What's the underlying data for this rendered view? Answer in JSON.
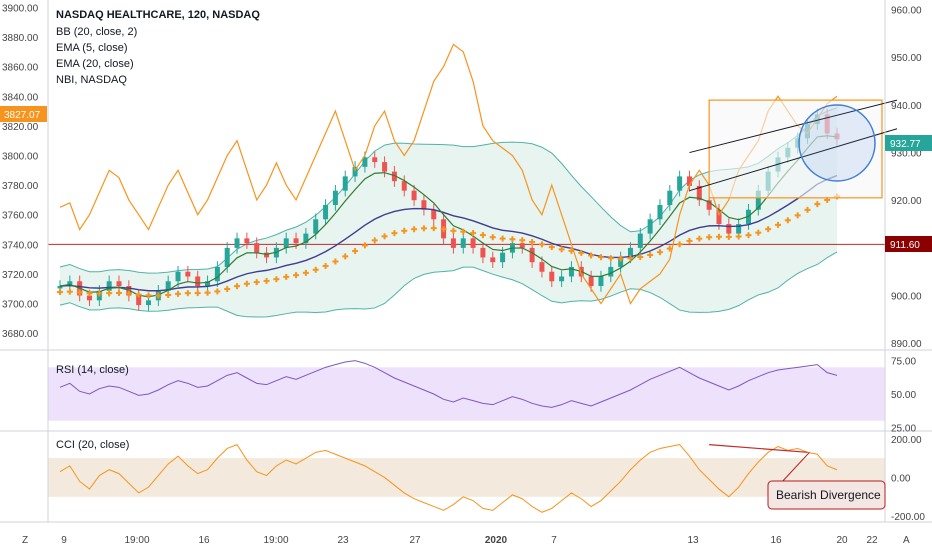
{
  "main": {
    "legend": [
      "NASDAQ HEALTHCARE, 120, NASDAQ",
      "BB (20, close, 2)",
      "EMA (5, close)",
      "EMA (20, close)",
      "NBI, NASDAQ"
    ],
    "left_ticks": [
      "3900.00",
      "3880.00",
      "3860.00",
      "3840.00",
      "3820.00",
      "3800.00",
      "3780.00",
      "3760.00",
      "3740.00",
      "3720.00",
      "3700.00",
      "3680.00"
    ],
    "right_ticks": [
      "960.00",
      "950.00",
      "940.00",
      "930.00",
      "920.00",
      "910.00",
      "900.00",
      "890.00"
    ],
    "left_price_tag": "3827.07",
    "right_price_tag_green": "932.77",
    "right_price_tag_red": "911.60"
  },
  "rsi": {
    "legend": "RSI (14, close)",
    "ticks": [
      "75.00",
      "50.00",
      "25.00"
    ]
  },
  "cci": {
    "legend": "CCI (20, close)",
    "ticks": [
      "200.00",
      "0.00",
      "-200.00"
    ],
    "annotation": "Bearish Divergence"
  },
  "time_axis": {
    "labels": [
      "9",
      "19:00",
      "16",
      "19:00",
      "23",
      "27",
      "2020",
      "7",
      "13",
      "16",
      "20",
      "22"
    ]
  },
  "corner": {
    "left": "Z",
    "right": "A"
  },
  "colors": {
    "up": "#26a69a",
    "down": "#ef5350",
    "orange": "#f7941d",
    "ema5": "#2e7d32",
    "ema20": "#3f3d8f",
    "bb": "#4fb3a6",
    "bbfill": "#e4f3ee",
    "hline": "#c62828",
    "rsiband": "#ede1fb",
    "cciband": "#f3e9dc",
    "circle": "#3f7fd6"
  },
  "chart_data": [
    {
      "type": "candlestick",
      "title": "NASDAQ HEALTHCARE, 120, NASDAQ",
      "left_axis_range": [
        3670,
        3905
      ],
      "right_axis_range": [
        889,
        962
      ],
      "x_labels": [
        "9",
        "19:00",
        "16",
        "19:00",
        "23",
        "27",
        "2020",
        "7",
        "13",
        "16",
        "20",
        "22"
      ],
      "horizontal_line": 3740,
      "series": [
        {
          "name": "NBI, NASDAQ",
          "axis": "left",
          "values": [
            3765,
            3768,
            3750,
            3760,
            3775,
            3790,
            3785,
            3770,
            3760,
            3750,
            3765,
            3780,
            3790,
            3775,
            3760,
            3770,
            3785,
            3800,
            3810,
            3790,
            3770,
            3780,
            3795,
            3780,
            3770,
            3785,
            3800,
            3815,
            3830,
            3810,
            3790,
            3800,
            3820,
            3830,
            3810,
            3800,
            3810,
            3830,
            3850,
            3860,
            3875,
            3870,
            3850,
            3820,
            3810,
            3805,
            3800,
            3790,
            3770,
            3760,
            3780,
            3760,
            3740,
            3720,
            3710,
            3700,
            3710,
            3720,
            3700,
            3710,
            3715,
            3720,
            3730,
            3760,
            3780,
            3790,
            3780,
            3760,
            3770,
            3790,
            3800,
            3810,
            3830,
            3840,
            3830,
            3820,
            3815,
            3825,
            3835,
            3840
          ]
        },
        {
          "name": "NASDAQ HEALTHCARE (close)",
          "axis": "right",
          "values": [
            902,
            903,
            900,
            899,
            901,
            903,
            902,
            900,
            898,
            899,
            901,
            903,
            905,
            904,
            902,
            903,
            906,
            910,
            912,
            911,
            909,
            908,
            910,
            912,
            911,
            913,
            916,
            919,
            922,
            925,
            927,
            929,
            928,
            926,
            924,
            922,
            920,
            918,
            916,
            912,
            910,
            912,
            910,
            908,
            907,
            909,
            911,
            910,
            907,
            905,
            903,
            904,
            906,
            904,
            902,
            904,
            906,
            908,
            910,
            913,
            916,
            919,
            922,
            925,
            923,
            920,
            918,
            915,
            913,
            915,
            918,
            922,
            926,
            929,
            931,
            933,
            936,
            938,
            934,
            932.77
          ]
        },
        {
          "name": "EMA (5, close)",
          "axis": "right"
        },
        {
          "name": "EMA (20, close)",
          "axis": "right"
        },
        {
          "name": "BB (20, close, 2)",
          "axis": "right"
        }
      ]
    },
    {
      "type": "line",
      "title": "RSI (14, close)",
      "ylim": [
        25,
        75
      ],
      "band": [
        30,
        70
      ],
      "values": [
        55,
        58,
        52,
        50,
        54,
        56,
        55,
        52,
        49,
        50,
        53,
        57,
        60,
        58,
        55,
        56,
        60,
        64,
        66,
        62,
        58,
        57,
        60,
        63,
        61,
        64,
        67,
        70,
        72,
        74,
        75,
        73,
        70,
        66,
        62,
        59,
        56,
        53,
        50,
        46,
        44,
        47,
        45,
        43,
        42,
        45,
        48,
        46,
        43,
        41,
        40,
        42,
        45,
        43,
        41,
        44,
        47,
        50,
        53,
        57,
        61,
        64,
        67,
        70,
        66,
        62,
        59,
        56,
        53,
        56,
        60,
        63,
        66,
        68,
        69,
        70,
        71,
        72,
        66,
        64
      ]
    },
    {
      "type": "line",
      "title": "CCI (20, close)",
      "ylim": [
        -220,
        230
      ],
      "band": [
        -100,
        100
      ],
      "values": [
        30,
        60,
        -20,
        -60,
        10,
        40,
        20,
        -30,
        -80,
        -50,
        10,
        70,
        110,
        60,
        20,
        40,
        100,
        150,
        170,
        90,
        30,
        10,
        60,
        90,
        70,
        100,
        130,
        140,
        120,
        100,
        80,
        60,
        30,
        0,
        -40,
        -80,
        -110,
        -130,
        -150,
        -170,
        -140,
        -100,
        -120,
        -160,
        -170,
        -130,
        -90,
        -110,
        -150,
        -180,
        -160,
        -120,
        -80,
        -110,
        -150,
        -120,
        -70,
        -20,
        40,
        90,
        130,
        150,
        160,
        170,
        110,
        40,
        -10,
        -60,
        -100,
        -50,
        20,
        80,
        130,
        160,
        140,
        150,
        130,
        120,
        60,
        40
      ]
    }
  ]
}
